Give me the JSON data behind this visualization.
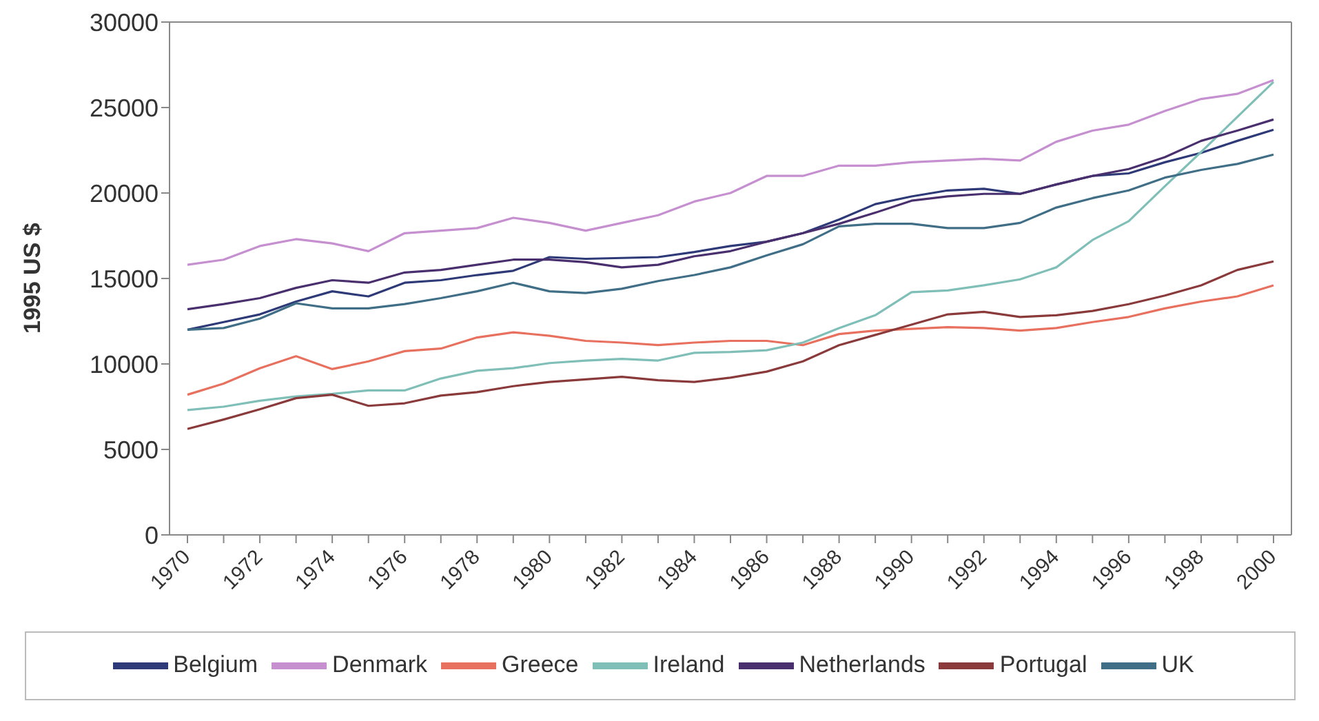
{
  "chart_data": {
    "type": "line",
    "ylabel": "1995 US $",
    "categories": [
      "1970",
      null,
      "1972",
      null,
      "1974",
      null,
      "1976",
      null,
      "1978",
      null,
      "1980",
      null,
      "1982",
      null,
      "1984",
      null,
      "1986",
      null,
      "1988",
      null,
      "1990",
      null,
      "1992",
      null,
      "1994",
      null,
      "1996",
      null,
      "1998",
      null,
      "2000"
    ],
    "ylim": [
      0,
      30000
    ],
    "yticks": [
      0,
      5000,
      10000,
      15000,
      20000,
      25000,
      30000
    ],
    "grid": false,
    "legend": "bottom",
    "marker": "none",
    "line_style": "solid",
    "series": [
      {
        "name": "Belgium",
        "color": "#2e3a78",
        "values": [
          12000,
          12450,
          12900,
          13650,
          14250,
          13950,
          14750,
          14900,
          15200,
          15450,
          16250,
          16150,
          16200,
          16250,
          16550,
          16900,
          17150,
          17650,
          18450,
          19350,
          19800,
          20150,
          20250,
          19950,
          20500,
          21000,
          21150,
          21800,
          22350,
          23050,
          23700
        ]
      },
      {
        "name": "Denmark",
        "color": "#c58fd0",
        "values": [
          15800,
          16100,
          16900,
          17300,
          17050,
          16600,
          17650,
          17800,
          17950,
          18550,
          18250,
          17800,
          18250,
          18700,
          19500,
          20000,
          21000,
          21000,
          21600,
          21600,
          21800,
          21900,
          22000,
          21900,
          23000,
          23650,
          24000,
          24800,
          25500,
          25800,
          26600
        ]
      },
      {
        "name": "Greece",
        "color": "#e8705e",
        "values": [
          8200,
          8850,
          9750,
          10450,
          9700,
          10150,
          10750,
          10900,
          11550,
          11850,
          11650,
          11350,
          11250,
          11100,
          11250,
          11350,
          11350,
          11100,
          11750,
          11950,
          12050,
          12150,
          12100,
          11950,
          12100,
          12450,
          12750,
          13250,
          13650,
          13950,
          14600
        ]
      },
      {
        "name": "Ireland",
        "color": "#7fbfb8",
        "values": [
          7300,
          7500,
          7850,
          8100,
          8250,
          8450,
          8450,
          9150,
          9600,
          9750,
          10050,
          10200,
          10300,
          10200,
          10650,
          10700,
          10800,
          11250,
          12100,
          12850,
          14200,
          14300,
          14600,
          14950,
          15650,
          17250,
          18350,
          20400,
          22400,
          24450,
          26500
        ]
      },
      {
        "name": "Netherlands",
        "color": "#4a2f6e",
        "values": [
          13200,
          13500,
          13850,
          14450,
          14900,
          14750,
          15350,
          15500,
          15800,
          16100,
          16100,
          15950,
          15650,
          15800,
          16300,
          16600,
          17150,
          17650,
          18200,
          18850,
          19550,
          19800,
          19950,
          19950,
          20500,
          21000,
          21400,
          22100,
          23050,
          23650,
          24300
        ]
      },
      {
        "name": "Portugal",
        "color": "#8a3a3a",
        "values": [
          6200,
          6750,
          7350,
          8000,
          8200,
          7550,
          7700,
          8150,
          8350,
          8700,
          8950,
          9100,
          9250,
          9050,
          8950,
          9200,
          9550,
          10150,
          11100,
          11700,
          12300,
          12900,
          13050,
          12750,
          12850,
          13100,
          13500,
          14000,
          14600,
          15500,
          16000
        ]
      },
      {
        "name": "UK",
        "color": "#3f6e86",
        "values": [
          12000,
          12100,
          12650,
          13550,
          13250,
          13250,
          13500,
          13850,
          14250,
          14750,
          14250,
          14150,
          14400,
          14850,
          15200,
          15650,
          16350,
          17000,
          18050,
          18200,
          18200,
          17950,
          17950,
          18250,
          19150,
          19700,
          20150,
          20900,
          21350,
          21700,
          22250
        ]
      }
    ]
  }
}
